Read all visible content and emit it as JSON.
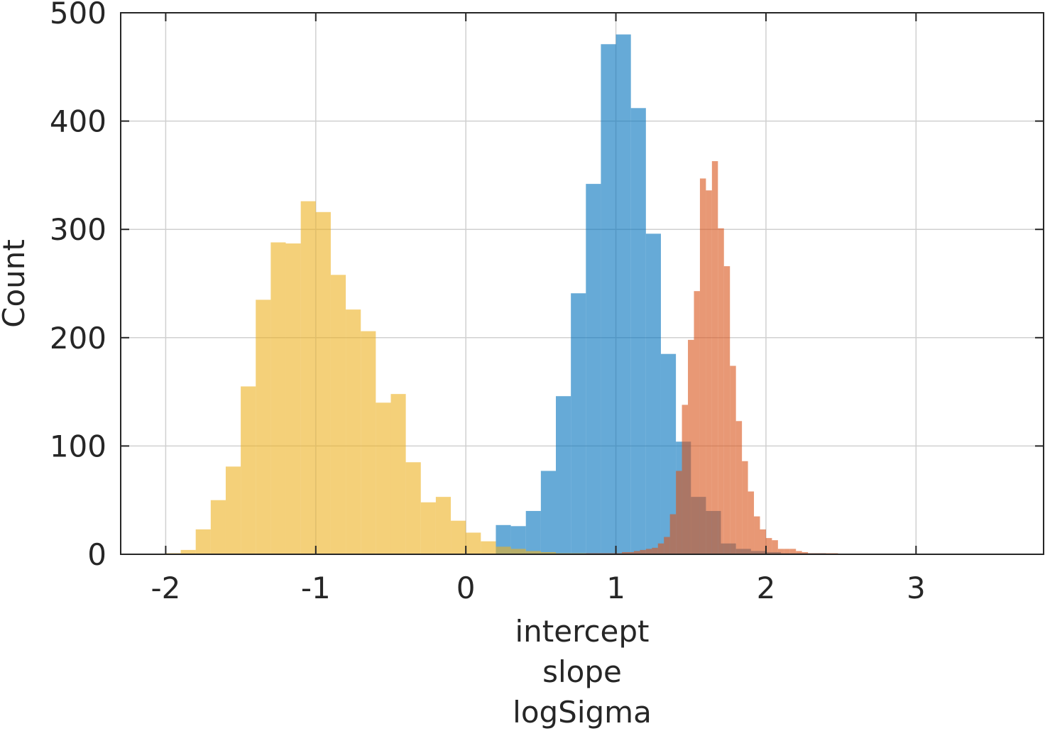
{
  "chart_data": {
    "type": "bar",
    "subtype": "overlaid-histogram",
    "title": "",
    "xlabel_lines": [
      "intercept",
      "slope",
      "logSigma"
    ],
    "ylabel": "Count",
    "xlim": [
      -2.3,
      3.85
    ],
    "ylim": [
      0,
      500
    ],
    "xticks": [
      -2,
      -1,
      0,
      1,
      2,
      3
    ],
    "xtick_labels": [
      "-2",
      "-1",
      "0",
      "1",
      "2",
      "3"
    ],
    "yticks": [
      0,
      100,
      200,
      300,
      400,
      500
    ],
    "ytick_labels": [
      "0",
      "100",
      "200",
      "300",
      "400",
      "500"
    ],
    "grid": true,
    "legend": "none",
    "series": [
      {
        "name": "intercept",
        "color": "#0072bd",
        "opacity": 0.6,
        "bin_start": -0.5,
        "bin_width": 0.1,
        "counts": [
          0,
          0,
          0,
          0,
          0,
          0,
          0,
          27,
          26,
          40,
          77,
          146,
          241,
          342,
          471,
          480,
          412,
          296,
          185,
          104,
          53,
          40,
          10,
          5,
          3,
          2,
          1,
          1,
          1,
          0,
          0,
          0,
          0,
          0,
          0,
          0,
          0,
          0,
          0,
          0,
          0
        ]
      },
      {
        "name": "slope",
        "color": "#d95319",
        "opacity": 0.6,
        "bin_start": 0.8,
        "bin_width": 0.04,
        "counts": [
          1,
          1,
          1,
          1,
          1,
          1,
          2,
          2,
          3,
          4,
          5,
          6,
          10,
          16,
          37,
          77,
          138,
          198,
          243,
          347,
          336,
          363,
          301,
          266,
          174,
          123,
          86,
          58,
          35,
          23,
          15,
          13,
          5,
          5,
          5,
          3,
          2,
          1,
          1,
          1,
          1,
          1,
          0,
          0,
          0,
          0,
          0,
          0,
          0,
          0,
          0,
          0,
          0,
          0
        ]
      },
      {
        "name": "logSigma",
        "color": "#edb120",
        "opacity": 0.6,
        "bin_start": -2.0,
        "bin_width": 0.1,
        "counts": [
          1,
          4,
          23,
          50,
          81,
          155,
          235,
          288,
          287,
          326,
          316,
          258,
          226,
          206,
          140,
          148,
          85,
          48,
          53,
          31,
          20,
          12,
          7,
          5,
          3,
          2,
          1,
          1,
          0,
          0,
          0
        ]
      }
    ]
  }
}
